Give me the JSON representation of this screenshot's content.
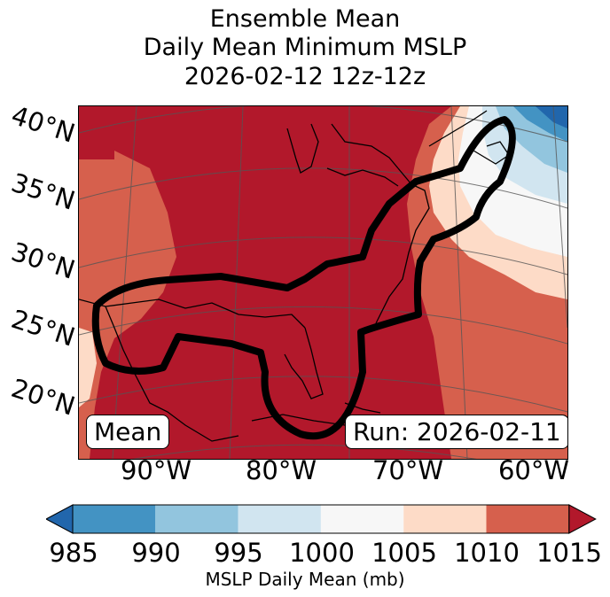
{
  "title": {
    "line1": "Ensemble Mean",
    "line2": "Daily Mean Minimum MSLP",
    "line3": "2026-02-12 12z-12z"
  },
  "lat_labels": [
    "40°N",
    "35°N",
    "30°N",
    "25°N",
    "20°N"
  ],
  "lon_labels": [
    "90°W",
    "80°W",
    "70°W",
    "60°W"
  ],
  "overlay": {
    "mean_label": "Mean",
    "run_label": "Run: 2026-02-11"
  },
  "colorbar": {
    "ticks": [
      "985",
      "990",
      "995",
      "1000",
      "1005",
      "1010",
      "1015"
    ],
    "label": "MSLP Daily Mean (mb)",
    "colors": [
      "#2166ac",
      "#4393c3",
      "#92c5de",
      "#d1e5f0",
      "#f7f7f7",
      "#fddbc7",
      "#d6604d",
      "#b2182b"
    ]
  }
}
